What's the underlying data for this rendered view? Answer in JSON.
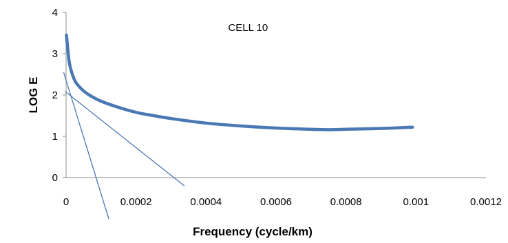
{
  "chart_data": {
    "type": "line",
    "title": "",
    "xlabel": "Frequency (cycle/km)",
    "ylabel": "LOG E",
    "xlim": [
      0,
      0.0012
    ],
    "ylim": [
      0,
      4
    ],
    "x_ticks": [
      "0",
      "0.0002",
      "0.0004",
      "0.0006",
      "0.0008",
      "0.001",
      "0.0012"
    ],
    "y_ticks": [
      "0",
      "1",
      "2",
      "3",
      "4"
    ],
    "grid": false,
    "annotations": [
      {
        "text": "CELL 10",
        "x": 0.00052,
        "y": 3.55
      }
    ],
    "series": [
      {
        "color": "#4a78b4",
        "x": [
          1e-06,
          5e-06,
          1e-05,
          2e-05,
          3e-05,
          5e-05,
          7e-05,
          0.0001,
          0.00015,
          0.0002,
          0.00025,
          0.0003,
          0.0004,
          0.0005,
          0.0006,
          0.0007,
          0.00075,
          0.0008,
          0.0009,
          0.00099
        ],
        "y": [
          3.45,
          3.1,
          2.75,
          2.45,
          2.28,
          2.1,
          1.98,
          1.85,
          1.7,
          1.58,
          1.5,
          1.43,
          1.32,
          1.25,
          1.2,
          1.17,
          1.16,
          1.17,
          1.19,
          1.22
        ]
      }
    ],
    "lines": [
      {
        "color": "#4a78b4",
        "x1": -7e-06,
        "y1": 2.55,
        "x2": 0.000122,
        "y2": -1.0
      },
      {
        "color": "#4a78b4",
        "x1": -2e-06,
        "y1": 2.08,
        "x2": 0.000338,
        "y2": -0.2
      }
    ]
  }
}
